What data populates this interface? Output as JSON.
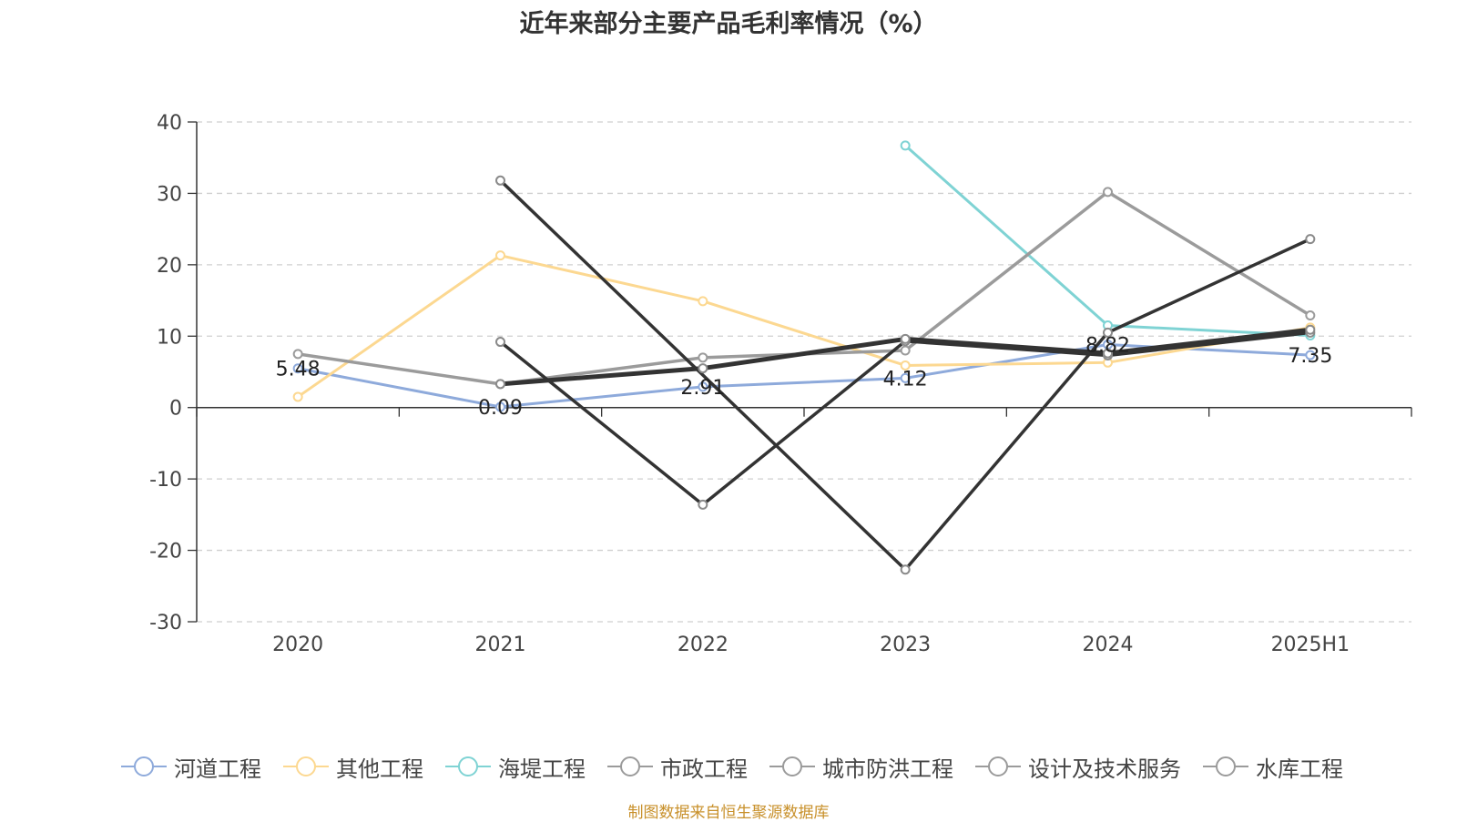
{
  "chart_data": {
    "type": "line",
    "title": "近年来部分主要产品毛利率情况（%）",
    "categories": [
      "2020",
      "2021",
      "2022",
      "2023",
      "2024",
      "2025H1"
    ],
    "ylim": [
      -30,
      40
    ],
    "yticks": [
      40,
      30,
      20,
      10,
      0,
      -10,
      -20,
      -30
    ],
    "grid": true,
    "legend_position": "bottom",
    "series": [
      {
        "name": "河道工程",
        "color": "#8eaadb",
        "values": [
          5.48,
          0.09,
          2.91,
          4.12,
          8.82,
          7.35
        ],
        "labels": [
          "5.48",
          "0.09",
          "2.91",
          "4.12",
          "8.82",
          "7.35"
        ]
      },
      {
        "name": "其他工程",
        "color": "#fcd891",
        "values": [
          1.5,
          21.3,
          14.9,
          5.9,
          6.3,
          11.2
        ]
      },
      {
        "name": "海堤工程",
        "color": "#7fd3d4",
        "values": [
          null,
          null,
          null,
          36.7,
          11.5,
          10.1
        ]
      },
      {
        "name": "市政工程",
        "color": "#9b9b9b",
        "values": [
          7.5,
          3.3,
          7.0,
          8.0,
          30.2,
          12.9
        ]
      },
      {
        "name": "城市防洪工程",
        "color": "#333333",
        "values": [
          null,
          9.2,
          -13.6,
          9.3,
          7.3,
          10.5
        ]
      },
      {
        "name": "设计及技术服务",
        "color": "#333333",
        "values": [
          null,
          31.8,
          null,
          -22.7,
          10.5,
          23.6
        ]
      },
      {
        "name": "水库工程",
        "color": "#333333",
        "values": [
          null,
          3.3,
          5.5,
          9.6,
          7.6,
          10.9
        ]
      }
    ]
  },
  "legend": [
    {
      "label": "河道工程",
      "color": "#8eaadb"
    },
    {
      "label": "其他工程",
      "color": "#fcd891"
    },
    {
      "label": "海堤工程",
      "color": "#7fd3d4"
    },
    {
      "label": "市政工程",
      "color": "#9b9b9b"
    },
    {
      "label": "城市防洪工程",
      "color": "#9b9b9b"
    },
    {
      "label": "设计及技术服务",
      "color": "#9b9b9b"
    },
    {
      "label": "水库工程",
      "color": "#9b9b9b"
    }
  ],
  "source": "制图数据来自恒生聚源数据库"
}
